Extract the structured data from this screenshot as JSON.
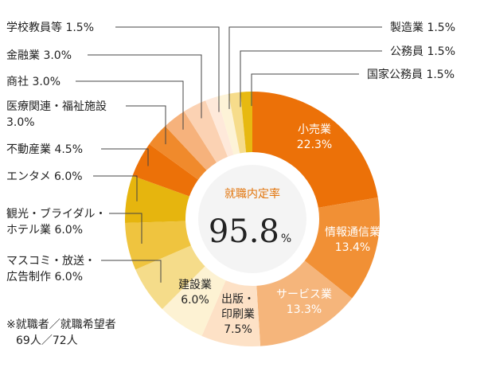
{
  "chart_data": {
    "type": "pie",
    "center": {
      "title": "就職内定率",
      "value": "95.8",
      "unit": "%"
    },
    "slices": [
      {
        "name": "小売業",
        "value": 22.3,
        "display": "22.3%",
        "color": "#ec7108"
      },
      {
        "name": "情報通信業",
        "value": 13.4,
        "display": "13.4%",
        "color": "#f19035"
      },
      {
        "name": "サービス業",
        "value": 13.3,
        "display": "13.3%",
        "color": "#f5b57b"
      },
      {
        "name": "出版・印刷業",
        "value": 7.5,
        "display": "7.5%",
        "color": "#fde1c6"
      },
      {
        "name": "建設業",
        "value": 6.0,
        "display": "6.0%",
        "color": "#fdf2d3"
      },
      {
        "name": "マスコミ・放送・広告制作",
        "value": 6.0,
        "display": "6.0%",
        "color": "#f5dc8a"
      },
      {
        "name": "観光・ブライダル・ホテル業",
        "value": 6.0,
        "display": "6.0%",
        "color": "#efc43f"
      },
      {
        "name": "エンタメ",
        "value": 6.0,
        "display": "6.0%",
        "color": "#e6b50e"
      },
      {
        "name": "不動産業",
        "value": 4.5,
        "display": "4.5%",
        "color": "#ec7108"
      },
      {
        "name": "医療関連・福祉施設",
        "value": 3.0,
        "display": "3.0%",
        "color": "#f08a2c"
      },
      {
        "name": "商社",
        "value": 3.0,
        "display": "3.0%",
        "color": "#f6b27c"
      },
      {
        "name": "金融業",
        "value": 3.0,
        "display": "3.0%",
        "color": "#fbd2b3"
      },
      {
        "name": "学校教員等",
        "value": 1.5,
        "display": "1.5%",
        "color": "#fee9da"
      },
      {
        "name": "製造業",
        "value": 1.5,
        "display": "1.5%",
        "color": "#fdf3d7"
      },
      {
        "name": "公務員",
        "value": 1.5,
        "display": "1.5%",
        "color": "#f6dc8b"
      },
      {
        "name": "国家公務員",
        "value": 1.5,
        "display": "1.5%",
        "color": "#e7b911"
      }
    ],
    "note": [
      "※就職者／就職希望者",
      "69人／72人"
    ]
  }
}
